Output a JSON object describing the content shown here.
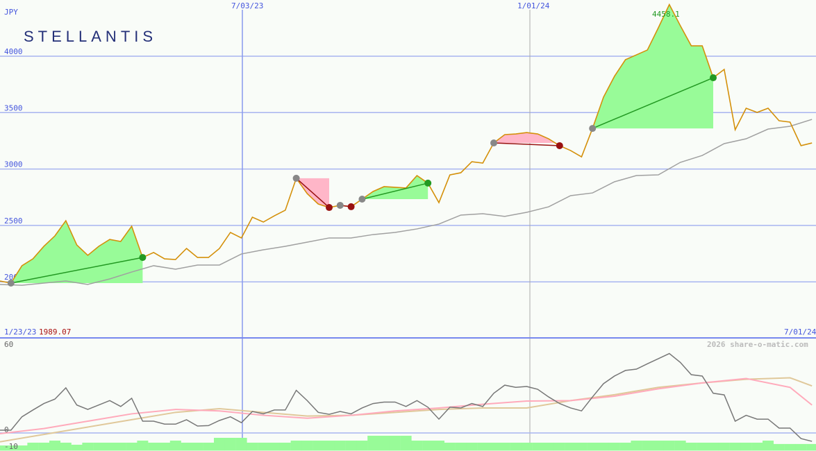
{
  "chart_data": {
    "type": "line",
    "currency_label": "JPY",
    "logo_text": "STELLANTIS",
    "start_date_label": "1/23/23",
    "start_price_label": "1989.07",
    "peak_label": "4458.1",
    "copyright": "2026 share-o-matic.com",
    "x_ticks": [
      {
        "label": "7/03/23",
        "color": "#8899ee"
      },
      {
        "label": "1/01/24",
        "color": "#aaaaaa"
      }
    ],
    "x_end_label": "7/01/24",
    "y_ticks": [
      4000,
      3500,
      3000,
      2500,
      2000
    ],
    "ylim": [
      2000,
      4000
    ],
    "interval": "weekly",
    "price": [
      2007,
      1989,
      2143,
      2204,
      2315,
      2407,
      2542,
      2327,
      2235,
      2315,
      2376,
      2358,
      2493,
      2216,
      2260,
      2204,
      2198,
      2296,
      2216,
      2216,
      2296,
      2438,
      2389,
      2573,
      2530,
      2585,
      2635,
      2918,
      2782,
      2690,
      2659,
      2678,
      2666,
      2733,
      2801,
      2844,
      2838,
      2832,
      2942,
      2875,
      2702,
      2948,
      2967,
      3065,
      3053,
      3231,
      3305,
      3311,
      3323,
      3311,
      3268,
      3207,
      3164,
      3108,
      3360,
      3637,
      3822,
      3969,
      4012,
      4055,
      4252,
      4458.1,
      4271,
      4092,
      4092,
      3809,
      3883,
      3348,
      3539,
      3502,
      3539,
      3428,
      3416,
      3207,
      3231
    ],
    "moving_average": [
      1977,
      1970,
      1989,
      2007,
      1977,
      2026,
      2087,
      2143,
      2112,
      2149,
      2149,
      2247,
      2284,
      2315,
      2352,
      2389,
      2389,
      2419,
      2438,
      2469,
      2512,
      2592,
      2604,
      2580,
      2616,
      2665,
      2764,
      2788,
      2887,
      2942,
      2948,
      3059,
      3120,
      3225,
      3268,
      3354,
      3379,
      3440
    ],
    "trades": [
      {
        "entry": 1,
        "exit": 13,
        "result": "gain"
      },
      {
        "entry": 27,
        "exit": 30,
        "result": "loss"
      },
      {
        "entry": 31,
        "exit": 32,
        "result": "loss"
      },
      {
        "entry": 33,
        "exit": 39,
        "result": "gain"
      },
      {
        "entry": 45,
        "exit": 51,
        "result": "loss"
      },
      {
        "entry": 54,
        "exit": 65,
        "result": "gain"
      }
    ],
    "oscillator": {
      "y_ticks": [
        60,
        0,
        -10
      ],
      "ylim": [
        -10,
        60
      ],
      "main": [
        1.9,
        1.9,
        11,
        15.6,
        20,
        23,
        30.7,
        19,
        16,
        19,
        22,
        18,
        23.6,
        8,
        8,
        6,
        6,
        9,
        4.7,
        5,
        8.5,
        11,
        7,
        14.6,
        13,
        15.6,
        15.6,
        29,
        22,
        14,
        12.7,
        14.6,
        13,
        17,
        20,
        21,
        21,
        18,
        22,
        17.5,
        9.4,
        17.5,
        17,
        20,
        18,
        27,
        32.5,
        31,
        31.6,
        29.7,
        24.5,
        20,
        17,
        15,
        24.5,
        33.5,
        38.7,
        42.5,
        43.4,
        47,
        50.5,
        54,
        48,
        39.6,
        38.7,
        27,
        25.9,
        8,
        12,
        9.4,
        9.4,
        3.3,
        3.3,
        -3.8,
        -5.7
      ],
      "signal_pink": [
        -0.5,
        3,
        8,
        13,
        16,
        15,
        12,
        10,
        12,
        15,
        17,
        19.5,
        21.7,
        22,
        25,
        30,
        34,
        37,
        31,
        19
      ],
      "signal_tan": [
        -6,
        -1,
        4,
        9,
        14,
        16.5,
        14,
        11.5,
        12,
        14,
        16,
        17,
        17,
        22,
        26,
        31,
        34,
        36.5,
        37.5,
        32
      ],
      "histogram": [
        -8.5,
        -8.5,
        -8.5,
        -6.6,
        -6.6,
        -5.2,
        -6.6,
        -8,
        -6.6,
        -6.6,
        -6.6,
        -6.6,
        -6.6,
        -5.2,
        -6.6,
        -6.6,
        -5.2,
        -6.6,
        -6.6,
        -6.6,
        -3.3,
        -3.3,
        -3.3,
        -6.6,
        -6.6,
        -6.6,
        -6.6,
        -5.2,
        -5.2,
        -5.2,
        -5.2,
        -5.2,
        -5.2,
        -5.2,
        -1.9,
        -1.9,
        -1.9,
        -1.9,
        -5.2,
        -5.2,
        -5.2,
        -6.6,
        -6.6,
        -6.6,
        -6.6,
        -6.6,
        -6.6,
        -6.6,
        -6.6,
        -6.6,
        -6.6,
        -6.6,
        -6.6,
        -6.6,
        -6.6,
        -6.6,
        -6.6,
        -6.6,
        -5.2,
        -5.2,
        -5.2,
        -5.2,
        -5.2,
        -6.6,
        -6.6,
        -6.6,
        -6.6,
        -6.6,
        -6.6,
        -6.6,
        -5.2,
        -7.5,
        -7.5,
        -7.5,
        -7.5
      ]
    },
    "colors": {
      "price": "#d4900a",
      "moving_average": "#a0a0a0",
      "gain_fill": "#98fb98",
      "loss_fill": "#ffb6c8",
      "gain_line": "#229922",
      "loss_line": "#991111",
      "grid": "#a8b4f0",
      "axis_text": "#4455dd",
      "oscillator": "#777777",
      "signal_pink": "#ffaabb",
      "signal_tan": "#e0c89a",
      "histogram": "#98fb98"
    }
  }
}
